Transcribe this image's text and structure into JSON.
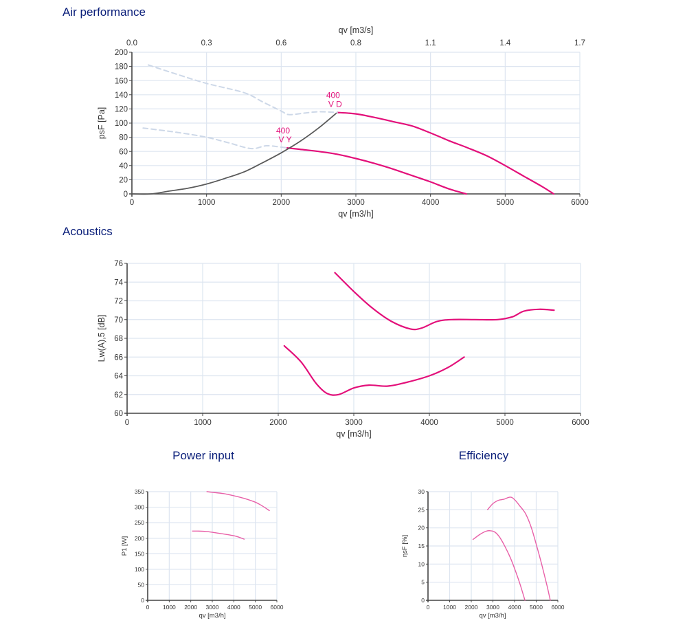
{
  "page": {
    "sections": {
      "air_performance": "Air performance",
      "acoustics": "Acoustics",
      "power_input": "Power input",
      "efficiency": "Efficiency"
    }
  },
  "colors": {
    "curve": "#e3107a",
    "curve_light": "#e860a8",
    "system": "#5a5a5a",
    "dashed": "#cdd8e8",
    "title": "#0b1f7a",
    "grid": "#dde5f0"
  },
  "chart_data": [
    {
      "id": "air",
      "type": "line",
      "title": "Air performance",
      "xlabel": "qv [m3/h]",
      "ylabel": "psF [Pa]",
      "x2label": "qv [m3/s]",
      "xlim": [
        0,
        6000
      ],
      "ylim": [
        0,
        200
      ],
      "xticks": [
        0,
        1000,
        2000,
        3000,
        4000,
        5000,
        6000
      ],
      "xtick_labels": [
        "0",
        "1000",
        "2000",
        "3000",
        "4000",
        "5000",
        "6000"
      ],
      "yticks": [
        0,
        20,
        40,
        60,
        80,
        100,
        120,
        140,
        160,
        180,
        200
      ],
      "ytick_labels": [
        "0",
        "20",
        "40",
        "60",
        "80",
        "100",
        "120",
        "140",
        "160",
        "180",
        "200"
      ],
      "x2ticks": [
        0,
        1000,
        2000,
        3000,
        4000,
        5000,
        6000
      ],
      "x2tick_labels": [
        "0.0",
        "0.3",
        "0.6",
        "0.8",
        "1.1",
        "1.4",
        "1.7"
      ],
      "grid": true,
      "series": [
        {
          "name": "400 VD",
          "style": "solid",
          "color": "curve",
          "x": [
            2750,
            3000,
            3250,
            3500,
            3750,
            4000,
            4250,
            4500,
            4750,
            5000,
            5250,
            5500,
            5650
          ],
          "y": [
            115,
            113,
            108,
            102,
            96,
            86,
            75,
            65,
            54,
            40,
            25,
            10,
            0
          ]
        },
        {
          "name": "400 VY",
          "style": "solid",
          "color": "curve",
          "x": [
            2080,
            2250,
            2500,
            2750,
            3000,
            3250,
            3500,
            3750,
            4000,
            4250,
            4480
          ],
          "y": [
            65,
            63,
            60,
            56,
            50,
            43,
            35,
            26,
            17,
            7,
            0
          ]
        },
        {
          "name": "system curve",
          "style": "solid",
          "color": "system",
          "x": [
            0,
            250,
            500,
            750,
            1000,
            1250,
            1500,
            1750,
            2000,
            2250,
            2500,
            2750
          ],
          "y": [
            0,
            0,
            4,
            8,
            14,
            22,
            31,
            44,
            58,
            74,
            93,
            115
          ]
        },
        {
          "name": "VD extension",
          "style": "dashed",
          "color": "dashed",
          "x": [
            220,
            600,
            1000,
            1500,
            1750,
            2000,
            2100,
            2300,
            2500,
            2750
          ],
          "y": [
            182,
            169,
            156,
            143,
            130,
            117,
            112,
            114,
            116,
            115
          ]
        },
        {
          "name": "VY extension",
          "style": "dashed",
          "color": "dashed",
          "x": [
            150,
            600,
            1000,
            1300,
            1600,
            1800,
            2000,
            2080
          ],
          "y": [
            93,
            87,
            80,
            72,
            64,
            68,
            66,
            65
          ]
        }
      ],
      "annotations": [
        {
          "line1": "400",
          "line2": "V D",
          "x": 2750,
          "y": 115
        },
        {
          "line1": "400",
          "line2": "V Y",
          "x": 2080,
          "y": 65
        }
      ]
    },
    {
      "id": "acoustics",
      "type": "line",
      "title": "Acoustics",
      "xlabel": "qv [m3/h]",
      "ylabel": "Lw(A),5 [dB]",
      "xlim": [
        0,
        6000
      ],
      "ylim": [
        60,
        76
      ],
      "xticks": [
        0,
        1000,
        2000,
        3000,
        4000,
        5000,
        6000
      ],
      "xtick_labels": [
        "0",
        "1000",
        "2000",
        "3000",
        "4000",
        "5000",
        "6000"
      ],
      "yticks": [
        60,
        62,
        64,
        66,
        68,
        70,
        72,
        74,
        76
      ],
      "ytick_labels": [
        "60",
        "62",
        "64",
        "66",
        "68",
        "70",
        "72",
        "74",
        "76"
      ],
      "grid": true,
      "series": [
        {
          "name": "400 VD",
          "color": "curve",
          "x": [
            2750,
            3000,
            3250,
            3500,
            3750,
            3900,
            4100,
            4300,
            4600,
            4900,
            5100,
            5250,
            5450,
            5650
          ],
          "y": [
            75,
            73,
            71.2,
            69.8,
            69,
            69.1,
            69.8,
            70,
            70,
            70,
            70.3,
            70.9,
            71.1,
            71
          ]
        },
        {
          "name": "400 VY",
          "color": "curve",
          "x": [
            2080,
            2300,
            2500,
            2650,
            2800,
            3000,
            3200,
            3450,
            3700,
            4000,
            4250,
            4460
          ],
          "y": [
            67.2,
            65.5,
            63.2,
            62.1,
            62,
            62.7,
            63,
            62.9,
            63.3,
            64,
            64.9,
            66
          ]
        }
      ]
    },
    {
      "id": "power",
      "type": "line",
      "title": "Power input",
      "xlabel": "qv [m3/h]",
      "ylabel": "P1 [W]",
      "xlim": [
        0,
        6000
      ],
      "ylim": [
        0,
        350
      ],
      "xticks": [
        0,
        1000,
        2000,
        3000,
        4000,
        5000,
        6000
      ],
      "xtick_labels": [
        "0",
        "1000",
        "2000",
        "3000",
        "4000",
        "5000",
        "6000"
      ],
      "yticks": [
        0,
        50,
        100,
        150,
        200,
        250,
        300,
        350
      ],
      "ytick_labels": [
        "0",
        "50",
        "100",
        "150",
        "200",
        "250",
        "300",
        "350"
      ],
      "grid": true,
      "series": [
        {
          "name": "400 VD",
          "color": "curve_light",
          "x": [
            2750,
            3000,
            3500,
            4000,
            4500,
            5000,
            5300,
            5650
          ],
          "y": [
            350,
            348,
            344,
            337,
            328,
            316,
            305,
            289
          ]
        },
        {
          "name": "400 VY",
          "color": "curve_light",
          "x": [
            2080,
            2300,
            2700,
            3000,
            3500,
            4000,
            4250,
            4480
          ],
          "y": [
            223,
            223,
            222,
            219,
            214,
            208,
            203,
            197
          ]
        }
      ]
    },
    {
      "id": "efficiency",
      "type": "line",
      "title": "Efficiency",
      "xlabel": "qv [m3/h]",
      "ylabel": "ηsF [%]",
      "xlim": [
        0,
        6000
      ],
      "ylim": [
        0,
        30
      ],
      "xticks": [
        0,
        1000,
        2000,
        3000,
        4000,
        5000,
        6000
      ],
      "xtick_labels": [
        "0",
        "1000",
        "2000",
        "3000",
        "4000",
        "5000",
        "6000"
      ],
      "yticks": [
        0,
        5,
        10,
        15,
        20,
        25,
        30
      ],
      "ytick_labels": [
        "0",
        "5",
        "10",
        "15",
        "20",
        "25",
        "30"
      ],
      "grid": true,
      "series": [
        {
          "name": "400 VD",
          "color": "curve_light",
          "x": [
            2750,
            3000,
            3250,
            3500,
            3800,
            4000,
            4250,
            4500,
            4750,
            5000,
            5250,
            5500,
            5650
          ],
          "y": [
            25,
            26.7,
            27.6,
            27.9,
            28.5,
            27.8,
            26,
            24,
            20.5,
            15.5,
            10,
            4,
            0
          ]
        },
        {
          "name": "400 VY",
          "color": "curve_light",
          "x": [
            2080,
            2400,
            2700,
            2900,
            3100,
            3300,
            3500,
            3750,
            4000,
            4250,
            4480
          ],
          "y": [
            16.8,
            18.2,
            19.1,
            19.2,
            18.8,
            17.5,
            15.5,
            12.5,
            8.8,
            4.5,
            0
          ]
        }
      ]
    }
  ]
}
